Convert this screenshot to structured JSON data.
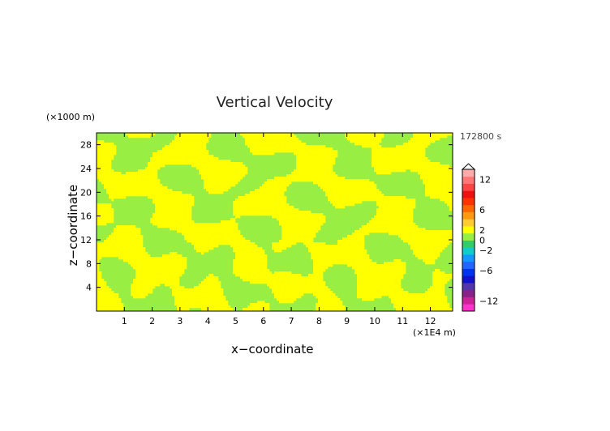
{
  "chart_data": {
    "type": "heatmap",
    "title": "Vertical Velocity",
    "xlabel": "x−coordinate",
    "ylabel": "z−coordinate",
    "x_multiplier": "(×1E4 m)",
    "y_multiplier": "(×1000 m)",
    "time_label": "172800 s",
    "xlim": [
      0,
      12.8
    ],
    "ylim": [
      0,
      30
    ],
    "x_ticks": [
      "1",
      "2",
      "3",
      "4",
      "5",
      "6",
      "7",
      "8",
      "9",
      "10",
      "11",
      "12"
    ],
    "y_ticks": [
      "4",
      "8",
      "12",
      "16",
      "20",
      "24",
      "28"
    ],
    "colorbar_ticks": [
      "12",
      "6",
      "2",
      "0",
      "−2",
      "−6",
      "−12"
    ],
    "colorbar_range": [
      -14,
      14
    ],
    "field_values": [
      -1,
      1
    ],
    "palette": {
      "yellow": "#ffff00",
      "green": "#99ee44",
      "plot_border": "#000000"
    },
    "colorbar_colors": [
      "#ff33cc",
      "#cc2299",
      "#882288",
      "#5533aa",
      "#1111cc",
      "#0033ee",
      "#2266ff",
      "#1199ff",
      "#11cccc",
      "#33cc66",
      "#99ee44",
      "#ffff00",
      "#ffcc33",
      "#ff9911",
      "#ff6600",
      "#ff3300",
      "#ee1111",
      "#ff4444",
      "#ff7777",
      "#ffaaaa"
    ]
  }
}
